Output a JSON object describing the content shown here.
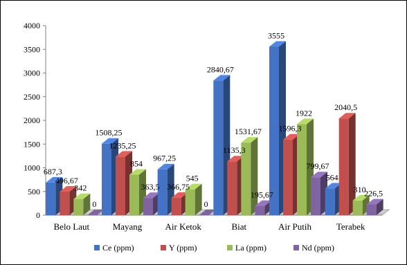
{
  "chart_data": {
    "type": "bar",
    "title": "",
    "xlabel": "",
    "ylabel": "",
    "ylim": [
      0,
      4000
    ],
    "yticks": [
      0,
      500,
      1000,
      1500,
      2000,
      2500,
      3000,
      3500,
      4000
    ],
    "grid": false,
    "legend_position": "bottom",
    "categories": [
      "Belo Laut",
      "Mayang",
      "Air Ketok",
      "Biat",
      "Air Putih",
      "Terabek"
    ],
    "series": [
      {
        "name": "Ce (ppm)",
        "color": "#4472C4",
        "values": [
          687.3,
          1508.25,
          967.25,
          2840.67,
          3555,
          564
        ],
        "labels": [
          "687,3",
          "1508,25",
          "967,25",
          "2840,67",
          "3555",
          "564"
        ]
      },
      {
        "name": "Y (ppm)",
        "color": "#C0504D",
        "values": [
          496.67,
          1235.25,
          366.75,
          1135.3,
          1596.3,
          2040.5
        ],
        "labels": [
          "496,67",
          "1235,25",
          "366,75",
          "1135,3",
          "1596,3",
          "2040,5"
        ]
      },
      {
        "name": "La (ppm)",
        "color": "#9BBB59",
        "values": [
          342,
          854,
          545,
          1531.67,
          1922,
          310
        ],
        "labels": [
          "342",
          "854",
          "545",
          "1531,67",
          "1922",
          "310"
        ]
      },
      {
        "name": "Nd (ppm)",
        "color": "#8064A2",
        "values": [
          0,
          363.5,
          0,
          195.67,
          799.67,
          226.5
        ],
        "labels": [
          "0",
          "363,5",
          "0",
          "195,67",
          "799,67",
          "226,5"
        ]
      }
    ]
  }
}
